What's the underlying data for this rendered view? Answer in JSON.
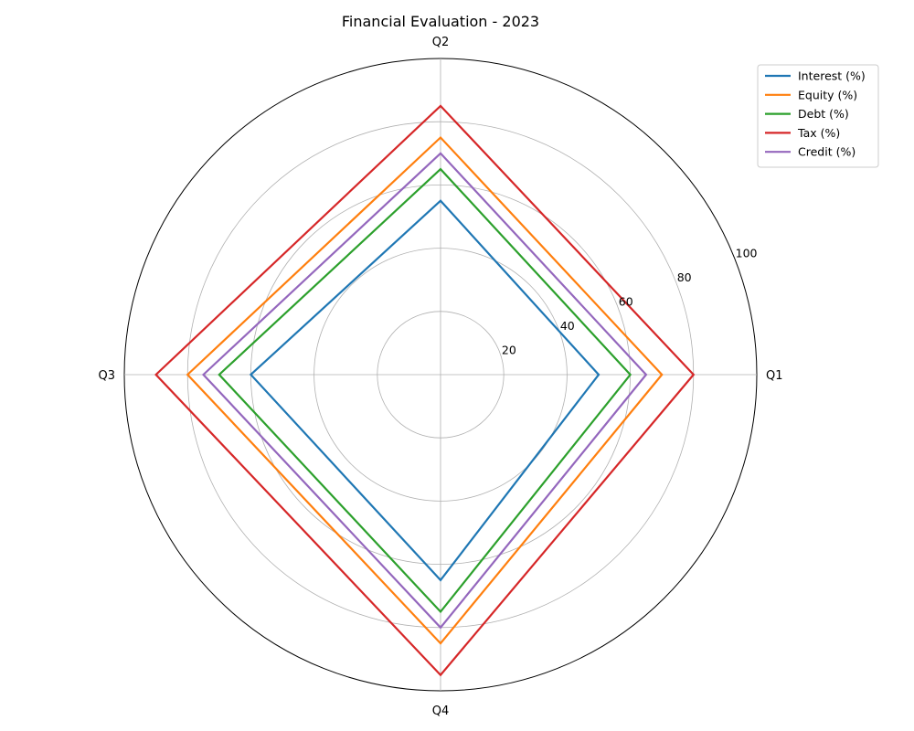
{
  "chart_data": {
    "type": "radar",
    "title": "Financial Evaluation - 2023",
    "categories": [
      "Q1",
      "Q2",
      "Q3",
      "Q4"
    ],
    "rlim": [
      0,
      100
    ],
    "r_ticks": [
      20,
      40,
      60,
      80,
      100
    ],
    "r_tick_labels": [
      "20",
      "40",
      "60",
      "80",
      "100"
    ],
    "grid": true,
    "legend_position": "top-right",
    "series": [
      {
        "name": "Interest (%)",
        "values": [
          50,
          55,
          60,
          65
        ],
        "color": "#1f77b4"
      },
      {
        "name": "Equity (%)",
        "values": [
          70,
          75,
          80,
          85
        ],
        "color": "#ff7f0e"
      },
      {
        "name": "Debt (%)",
        "values": [
          60,
          65,
          70,
          75
        ],
        "color": "#2ca02c"
      },
      {
        "name": "Tax (%)",
        "values": [
          80,
          85,
          90,
          95
        ],
        "color": "#d62728"
      },
      {
        "name": "Credit (%)",
        "values": [
          65,
          70,
          75,
          80
        ],
        "color": "#9467bd"
      }
    ]
  }
}
